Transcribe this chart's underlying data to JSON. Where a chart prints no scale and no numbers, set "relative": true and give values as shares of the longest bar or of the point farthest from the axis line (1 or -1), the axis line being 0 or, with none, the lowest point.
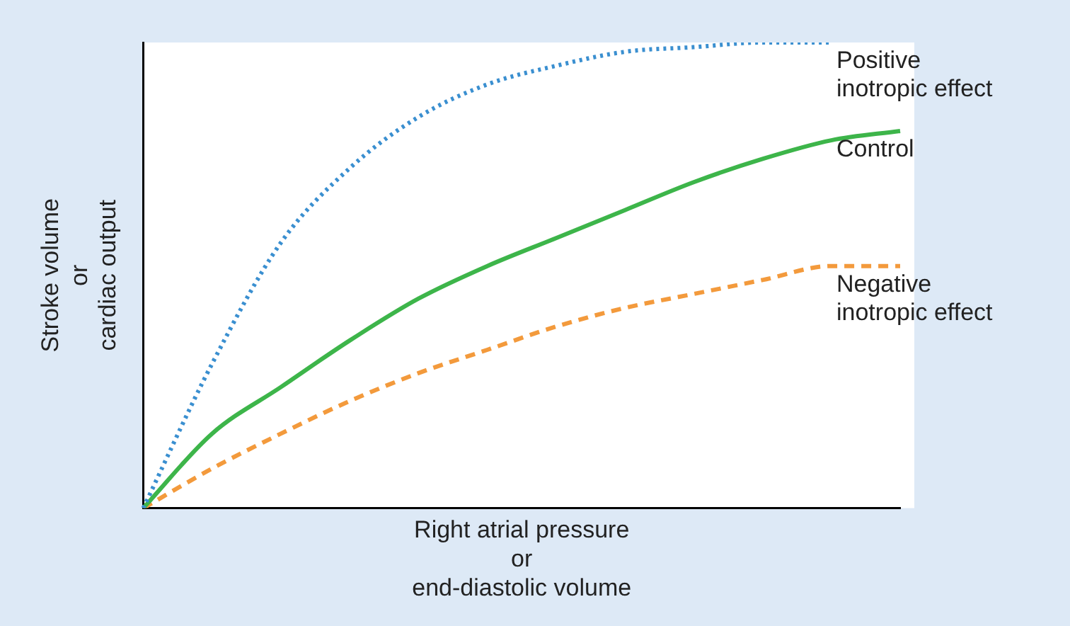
{
  "chart_data": {
    "type": "line",
    "relative": true,
    "xlabel": "Right atrial pressure\nor\nend-diastolic volume",
    "ylabel": "Stroke volume\nor\ncardiac output",
    "categories": [
      null,
      null,
      null,
      null,
      null,
      null,
      null,
      null,
      null,
      null,
      null,
      null
    ],
    "legend": false,
    "grid": false,
    "marker": "none",
    "series": [
      {
        "name": "Positive inotropic effect",
        "color": "#3a8fd0",
        "line_style": "dotted",
        "values": [
          0,
          0.31,
          0.57,
          0.73,
          0.84,
          0.91,
          0.95,
          0.98,
          0.99,
          1,
          1,
          null
        ]
      },
      {
        "name": "Control",
        "color": "#3db54a",
        "line_style": "solid",
        "values": [
          0,
          0.16,
          0.26,
          0.36,
          0.45,
          0.52,
          0.58,
          0.64,
          0.7,
          0.75,
          0.79,
          0.81
        ]
      },
      {
        "name": "Negative inotropic effect",
        "color": "#f39a3c",
        "line_style": "dashed",
        "values": [
          0,
          0.085,
          0.16,
          0.23,
          0.29,
          0.34,
          0.39,
          0.43,
          0.46,
          0.49,
          0.52,
          0.52
        ]
      }
    ]
  }
}
